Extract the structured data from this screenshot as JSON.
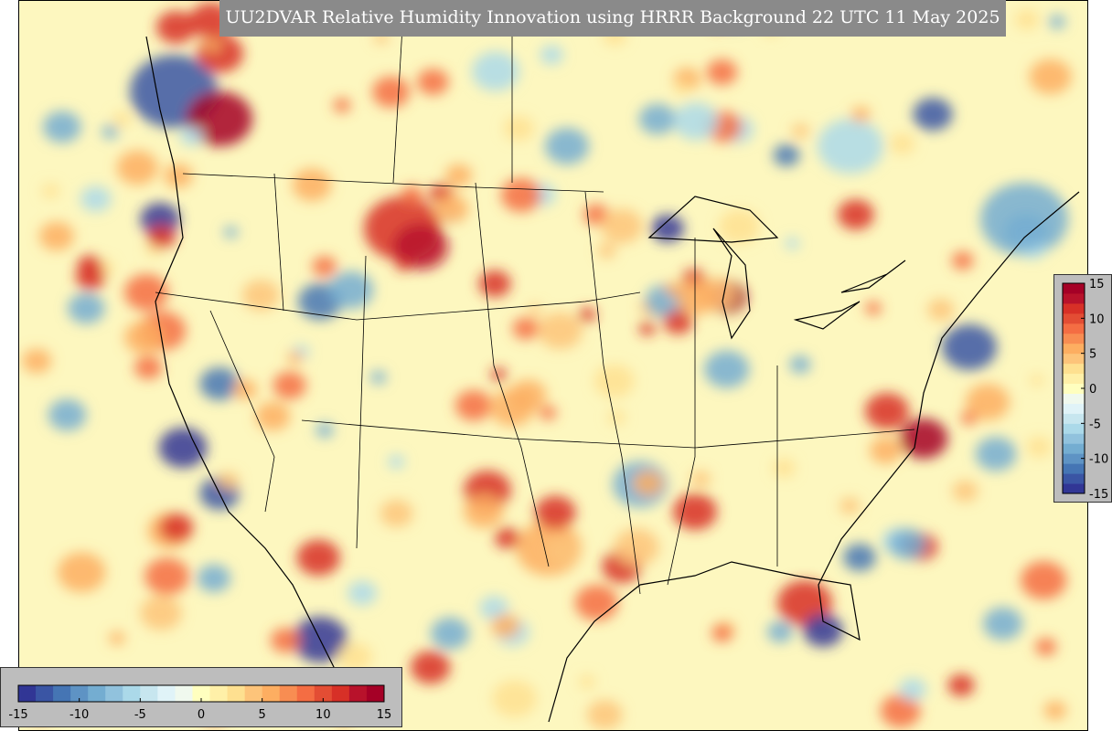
{
  "title": "UU2DVAR Relative Humidity Innovation using HRRR Background 22 UTC 11 May 2025",
  "colorbar": {
    "range": [
      -15,
      15
    ],
    "colors": [
      "#313695",
      "#3a55a4",
      "#4575b4",
      "#5e93c4",
      "#74add1",
      "#91c2dd",
      "#abd9e9",
      "#c7e6ef",
      "#e0f3f8",
      "#f0f9ee",
      "#ffffbf",
      "#fff0a8",
      "#fee090",
      "#fdc47a",
      "#fdae61",
      "#f88d52",
      "#f46d43",
      "#e34d34",
      "#d73027",
      "#b8122b",
      "#a50026"
    ],
    "horizontal_ticks": [
      -15,
      -10,
      -5,
      0,
      5,
      10,
      15
    ],
    "vertical_ticks": [
      15,
      10,
      5,
      0,
      -5,
      -10,
      -15
    ]
  }
}
